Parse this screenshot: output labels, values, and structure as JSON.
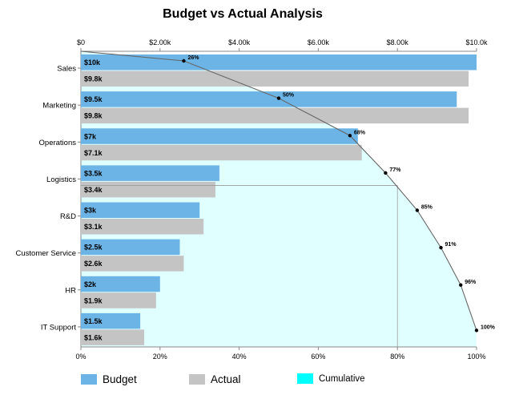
{
  "chart_data": {
    "type": "bar",
    "orientation": "horizontal",
    "title": "Budget vs Actual Analysis",
    "categories": [
      "Sales",
      "Marketing",
      "Operations",
      "Logistics",
      "R&D",
      "Customer Service",
      "HR",
      "IT Support"
    ],
    "series": [
      {
        "name": "Budget",
        "values": [
          10000,
          9500,
          7000,
          3500,
          3000,
          2500,
          2000,
          1500
        ],
        "labels": [
          "$10k",
          "$9.5k",
          "$7k",
          "$3.5k",
          "$3k",
          "$2.5k",
          "$2k",
          "$1.5k"
        ],
        "color": "#6cb4e6"
      },
      {
        "name": "Actual",
        "values": [
          9800,
          9800,
          7100,
          3400,
          3100,
          2600,
          1900,
          1600
        ],
        "labels": [
          "$9.8k",
          "$9.8k",
          "$7.1k",
          "$3.4k",
          "$3.1k",
          "$2.6k",
          "$1.9k",
          "$1.6k"
        ],
        "color": "#c4c4c4"
      }
    ],
    "cumulative": {
      "name": "Cumulative",
      "values": [
        26,
        50,
        68,
        77,
        85,
        91,
        96,
        100
      ],
      "labels": [
        "26%",
        "50%",
        "68%",
        "77%",
        "85%",
        "91%",
        "96%",
        "100%"
      ],
      "color": "#e0ffff",
      "line_color": "#666666",
      "reference_point": [
        80,
        77
      ]
    },
    "x_top": {
      "ticks": [
        0,
        2000,
        4000,
        6000,
        8000,
        10000
      ],
      "tick_labels": [
        "$0",
        "$2.00k",
        "$4.00k",
        "$6.00k",
        "$8.00k",
        "$10.0k"
      ],
      "range": [
        0,
        10000
      ]
    },
    "x_bottom": {
      "ticks": [
        0,
        20,
        40,
        60,
        80,
        100
      ],
      "tick_labels": [
        "0%",
        "20%",
        "40%",
        "60%",
        "80%",
        "100%"
      ],
      "range": [
        0,
        100
      ]
    },
    "legend": {
      "position": "bottom",
      "items": [
        {
          "label": "Budget",
          "color": "#6cb4e6"
        },
        {
          "label": "Actual",
          "color": "#c4c4c4"
        },
        {
          "label": "Cumulative",
          "color": "#00ffff"
        }
      ]
    }
  }
}
